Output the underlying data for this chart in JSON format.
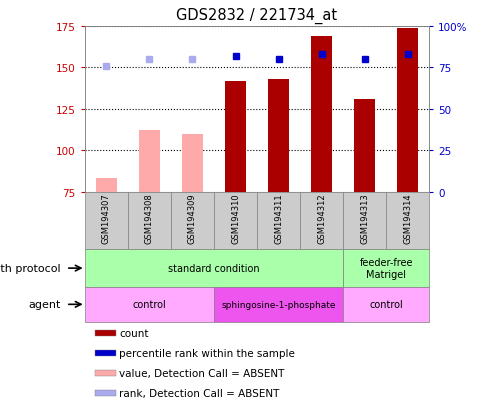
{
  "title": "GDS2832 / 221734_at",
  "samples": [
    "GSM194307",
    "GSM194308",
    "GSM194309",
    "GSM194310",
    "GSM194311",
    "GSM194312",
    "GSM194313",
    "GSM194314"
  ],
  "count_values": [
    null,
    null,
    null,
    142,
    143,
    169,
    131,
    174
  ],
  "count_absent_values": [
    83,
    112,
    110,
    null,
    null,
    null,
    null,
    null
  ],
  "percentile_values": [
    null,
    null,
    null,
    157,
    155,
    158,
    155,
    158
  ],
  "percentile_absent_values": [
    151,
    155,
    155,
    null,
    null,
    null,
    null,
    null
  ],
  "ylim_left": [
    75,
    175
  ],
  "ylim_right": [
    0,
    100
  ],
  "yticks_left": [
    75,
    100,
    125,
    150,
    175
  ],
  "yticks_right": [
    0,
    25,
    50,
    75,
    100
  ],
  "bar_color_present": "#aa0000",
  "bar_color_absent": "#ffaaaa",
  "dot_color_present": "#0000cc",
  "dot_color_absent": "#aaaaee",
  "bar_width": 0.5,
  "growth_groups": [
    {
      "label": "standard condition",
      "start": 0,
      "end": 6,
      "color": "#aaffaa"
    },
    {
      "label": "feeder-free\nMatrigel",
      "start": 6,
      "end": 8,
      "color": "#aaffaa"
    }
  ],
  "agent_groups": [
    {
      "label": "control",
      "start": 0,
      "end": 3,
      "color": "#ffaaff"
    },
    {
      "label": "sphingosine-1-phosphate",
      "start": 3,
      "end": 6,
      "color": "#ee55ee"
    },
    {
      "label": "control",
      "start": 6,
      "end": 8,
      "color": "#ffaaff"
    }
  ],
  "legend_items": [
    {
      "label": "count",
      "color": "#aa0000"
    },
    {
      "label": "percentile rank within the sample",
      "color": "#0000cc"
    },
    {
      "label": "value, Detection Call = ABSENT",
      "color": "#ffaaaa"
    },
    {
      "label": "rank, Detection Call = ABSENT",
      "color": "#aaaaee"
    }
  ],
  "left_tick_color": "#cc0000",
  "right_tick_color": "#0000cc",
  "sample_box_color": "#cccccc",
  "grid_color": "black",
  "grid_linestyle": "dotted",
  "grid_lw": 0.8
}
